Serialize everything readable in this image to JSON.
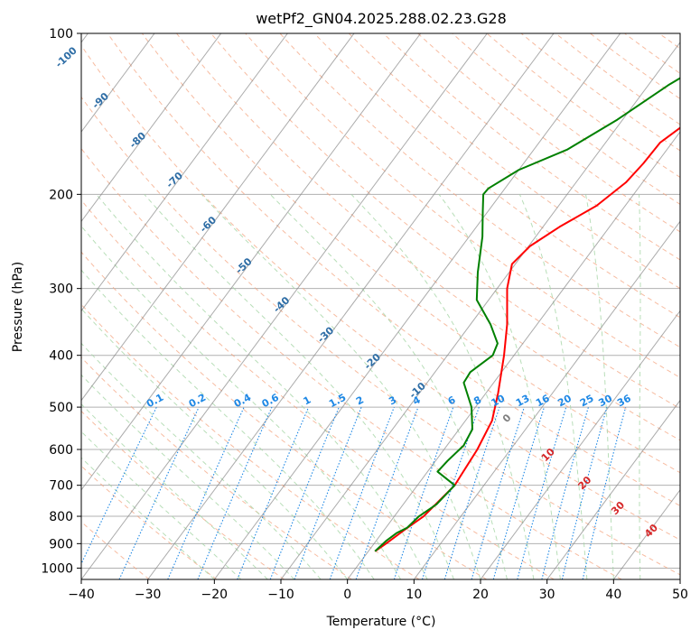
{
  "chart_data": {
    "type": "line",
    "subtype": "skew-t log-p diagram",
    "title": "wetPf2_GN04.2025.288.02.23.G28",
    "xlabel": "Temperature (°C)",
    "ylabel": "Pressure (hPa)",
    "xlim": [
      -40,
      50
    ],
    "ylim": [
      1050,
      100
    ],
    "y_scale": "log",
    "grid": true,
    "x_ticks": [
      -40,
      -30,
      -20,
      -10,
      0,
      10,
      20,
      30,
      40,
      50
    ],
    "y_ticks": [
      100,
      200,
      300,
      400,
      500,
      600,
      700,
      800,
      900,
      1000
    ],
    "series": [
      {
        "color": "#ff0000",
        "points": [
          [
            1.0,
            930
          ],
          [
            1.8,
            900
          ],
          [
            3.0,
            850
          ],
          [
            4.4,
            800
          ],
          [
            5.6,
            700
          ],
          [
            5.0,
            600
          ],
          [
            4.0,
            530
          ],
          [
            1.8,
            470
          ],
          [
            -1.5,
            400
          ],
          [
            -4.5,
            350
          ],
          [
            -8.5,
            300
          ],
          [
            -10.5,
            270
          ],
          [
            -9.8,
            250
          ],
          [
            -7.5,
            230
          ],
          [
            -4.3,
            210
          ],
          [
            -2.5,
            190
          ],
          [
            -2.0,
            175
          ],
          [
            -1.8,
            160
          ],
          [
            0.3,
            145
          ],
          [
            4.5,
            130
          ],
          [
            10.2,
            115
          ],
          [
            13.6,
            108
          ],
          [
            17.0,
            100
          ]
        ]
      },
      {
        "color": "#008000",
        "points": [
          [
            1.0,
            930
          ],
          [
            1.5,
            890
          ],
          [
            2.2,
            860
          ],
          [
            3.2,
            840
          ],
          [
            3.7,
            800
          ],
          [
            5.0,
            760
          ],
          [
            5.6,
            700
          ],
          [
            1.5,
            660
          ],
          [
            1.8,
            630
          ],
          [
            2.5,
            590
          ],
          [
            2.0,
            550
          ],
          [
            -0.6,
            500
          ],
          [
            -4.5,
            450
          ],
          [
            -4.7,
            430
          ],
          [
            -3.2,
            400
          ],
          [
            -3.8,
            380
          ],
          [
            -7.0,
            350
          ],
          [
            -11.8,
            315
          ],
          [
            -14.7,
            280
          ],
          [
            -18.0,
            240
          ],
          [
            -20.8,
            215
          ],
          [
            -22.6,
            200
          ],
          [
            -22.5,
            195
          ],
          [
            -20.0,
            180
          ],
          [
            -15.0,
            165
          ],
          [
            -10.8,
            145
          ],
          [
            -7.0,
            125
          ],
          [
            -2.8,
            110
          ],
          [
            2.4,
            100
          ]
        ]
      }
    ],
    "dry_adiabat_labels": [],
    "isotherm_labels": [
      "-100",
      "-90",
      "-80",
      "-70",
      "-60",
      "-50",
      "-40",
      "-30",
      "-20",
      "-10"
    ],
    "mixing_ratio_labels": [
      "0.1",
      "0.2",
      "0.4",
      "0.6",
      "1",
      "1.5",
      "2",
      "3",
      "4",
      "6",
      "8",
      "10",
      "13",
      "16",
      "20",
      "25",
      "30",
      "36"
    ],
    "moist_adiabat_labels": [
      "0",
      "10",
      "20",
      "30",
      "40"
    ],
    "colors": {
      "temperature": "#ff0000",
      "dewpoint": "#008000",
      "isotherm": "#888888",
      "isotherm_label": "#2f6ea6",
      "dry_adiabat": "#f4a582",
      "moist_adiabat": "#a6d6a6",
      "mixing_ratio": "#1e88e5",
      "moist_label": "#d62728",
      "grid": "#b0b0b0",
      "zero_label": "#808080"
    }
  }
}
